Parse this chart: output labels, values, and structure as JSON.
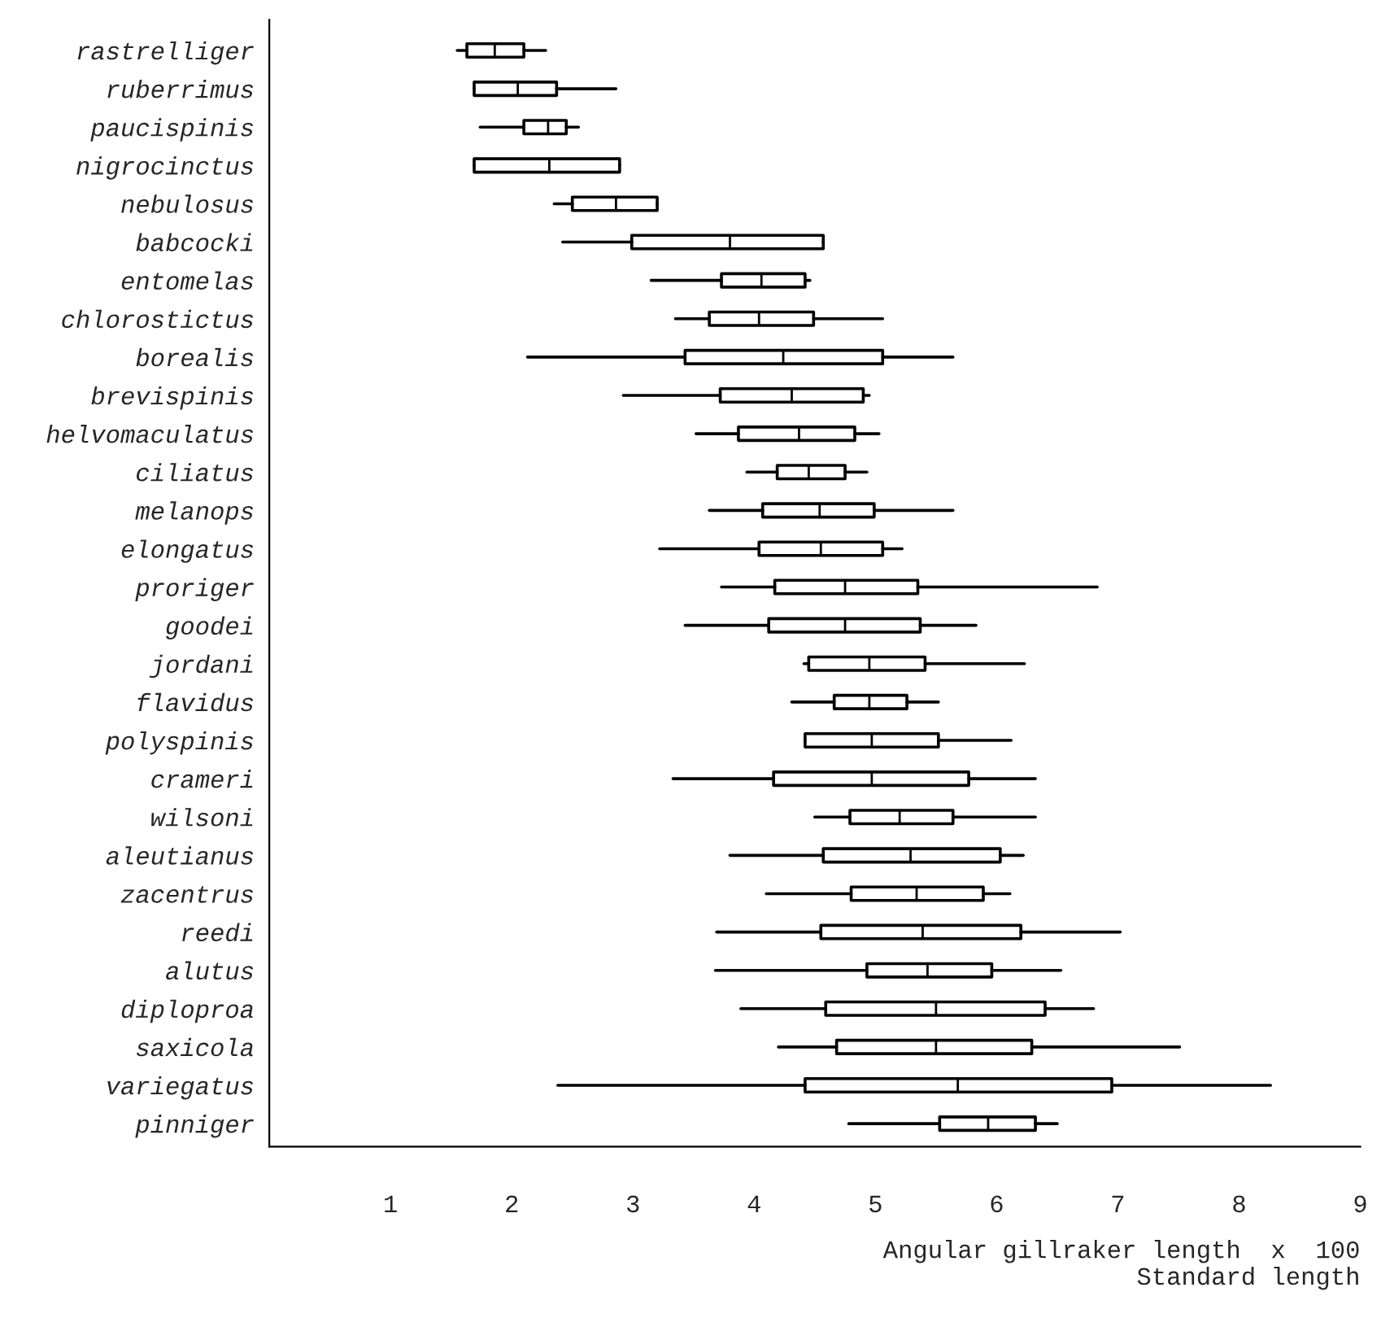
{
  "chart_data": {
    "type": "box",
    "orientation": "horizontal",
    "xlabel": "Angular gillraker length  x  100\nStandard length",
    "categories": [
      "rastrelliger",
      "ruberrimus",
      "paucispinis",
      "nigrocinctus",
      "nebulosus",
      "babcocki",
      "entomelas",
      "chlorostictus",
      "borealis",
      "brevispinis",
      "helvomaculatus",
      "ciliatus",
      "melanops",
      "elongatus",
      "proriger",
      "goodei",
      "jordani",
      "flavidus",
      "polyspinis",
      "crameri",
      "wilsoni",
      "aleutianus",
      "zacentrus",
      "reedi",
      "alutus",
      "diploproa",
      "saxicola",
      "variegatus",
      "pinniger"
    ],
    "boxes": [
      {
        "low": 1.55,
        "q1": 1.63,
        "median": 1.86,
        "q3": 2.1,
        "high": 2.28
      },
      {
        "low": 1.69,
        "q1": 1.69,
        "median": 2.05,
        "q3": 2.37,
        "high": 2.86
      },
      {
        "low": 1.74,
        "q1": 2.1,
        "median": 2.3,
        "q3": 2.45,
        "high": 2.55
      },
      {
        "low": 1.69,
        "q1": 1.69,
        "median": 2.31,
        "q3": 2.89,
        "high": 2.89
      },
      {
        "low": 2.35,
        "q1": 2.5,
        "median": 2.86,
        "q3": 3.2,
        "high": 3.2
      },
      {
        "low": 2.42,
        "q1": 2.99,
        "median": 3.8,
        "q3": 4.57,
        "high": 4.57
      },
      {
        "low": 3.15,
        "q1": 3.73,
        "median": 4.06,
        "q3": 4.42,
        "high": 4.46
      },
      {
        "low": 3.35,
        "q1": 3.63,
        "median": 4.04,
        "q3": 4.49,
        "high": 5.06
      },
      {
        "low": 2.13,
        "q1": 3.43,
        "median": 4.24,
        "q3": 5.06,
        "high": 5.64
      },
      {
        "low": 2.92,
        "q1": 3.72,
        "median": 4.31,
        "q3": 4.9,
        "high": 4.95
      },
      {
        "low": 3.52,
        "q1": 3.87,
        "median": 4.37,
        "q3": 4.83,
        "high": 5.03
      },
      {
        "low": 3.94,
        "q1": 4.19,
        "median": 4.45,
        "q3": 4.75,
        "high": 4.93
      },
      {
        "low": 3.63,
        "q1": 4.07,
        "median": 4.54,
        "q3": 4.99,
        "high": 5.64
      },
      {
        "low": 3.22,
        "q1": 4.04,
        "median": 4.55,
        "q3": 5.06,
        "high": 5.22
      },
      {
        "low": 3.73,
        "q1": 4.17,
        "median": 4.75,
        "q3": 5.35,
        "high": 6.83
      },
      {
        "low": 3.43,
        "q1": 4.12,
        "median": 4.75,
        "q3": 5.37,
        "high": 5.83
      },
      {
        "low": 4.41,
        "q1": 4.45,
        "median": 4.95,
        "q3": 5.41,
        "high": 6.23
      },
      {
        "low": 4.31,
        "q1": 4.66,
        "median": 4.95,
        "q3": 5.26,
        "high": 5.52
      },
      {
        "low": 4.42,
        "q1": 4.42,
        "median": 4.97,
        "q3": 5.52,
        "high": 6.12
      },
      {
        "low": 3.33,
        "q1": 4.16,
        "median": 4.97,
        "q3": 5.77,
        "high": 6.32
      },
      {
        "low": 4.5,
        "q1": 4.79,
        "median": 5.2,
        "q3": 5.64,
        "high": 6.32
      },
      {
        "low": 3.8,
        "q1": 4.57,
        "median": 5.29,
        "q3": 6.03,
        "high": 6.22
      },
      {
        "low": 4.1,
        "q1": 4.8,
        "median": 5.34,
        "q3": 5.89,
        "high": 6.11
      },
      {
        "low": 3.69,
        "q1": 4.55,
        "median": 5.39,
        "q3": 6.2,
        "high": 7.02
      },
      {
        "low": 3.68,
        "q1": 4.93,
        "median": 5.43,
        "q3": 5.96,
        "high": 6.53
      },
      {
        "low": 3.89,
        "q1": 4.59,
        "median": 5.5,
        "q3": 6.4,
        "high": 6.8
      },
      {
        "low": 4.2,
        "q1": 4.68,
        "median": 5.5,
        "q3": 6.29,
        "high": 7.51
      },
      {
        "low": 2.38,
        "q1": 4.42,
        "median": 5.68,
        "q3": 6.95,
        "high": 8.26
      },
      {
        "low": 4.78,
        "q1": 5.53,
        "median": 5.93,
        "q3": 6.32,
        "high": 6.5
      }
    ],
    "xlim": [
      0,
      9
    ],
    "xticks": [
      1,
      2,
      3,
      4,
      5,
      6,
      7,
      8,
      9
    ],
    "grid": false,
    "legend": false
  }
}
